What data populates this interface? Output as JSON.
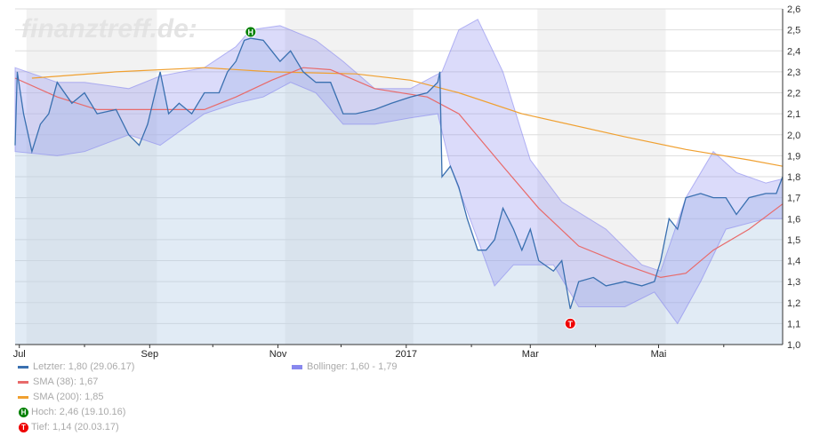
{
  "watermark": "finanztreff.de:",
  "colors": {
    "price": "#3a70b0",
    "sma38": "#e86a6a",
    "sma200": "#f0a030",
    "bollinger": "#8888ee",
    "hoch": "#008000",
    "tief": "#ee0000"
  },
  "legend": [
    {
      "label": "Letzter: 1,80 (29.06.17)"
    },
    {
      "label": "SMA (38): 1,67"
    },
    {
      "label": "SMA (200): 1,85"
    },
    {
      "label": "Hoch: 2,46 (19.10.16)",
      "marker": "H"
    },
    {
      "label": "Tief: 1,14 (20.03.17)",
      "marker": "T"
    },
    {
      "label": "Bollinger: 1,60 - 1,79"
    }
  ],
  "chart_data": {
    "type": "line",
    "xlim": [
      "2016-06-29",
      "2017-06-29"
    ],
    "ylim": [
      1.0,
      2.6
    ],
    "yticks": [
      "1,0",
      "1,1",
      "1,2",
      "1,3",
      "1,4",
      "1,5",
      "1,6",
      "1,7",
      "1,8",
      "1,9",
      "2,0",
      "2,1",
      "2,2",
      "2,3",
      "2,4",
      "2,5",
      "2,6"
    ],
    "xticks": [
      {
        "date": "2016-07-01",
        "label": "Jul"
      },
      {
        "date": "2016-09-01",
        "label": "Sep"
      },
      {
        "date": "2016-11-01",
        "label": "Nov"
      },
      {
        "date": "2017-01-01",
        "label": "2017"
      },
      {
        "date": "2017-03-01",
        "label": "Mar"
      },
      {
        "date": "2017-05-01",
        "label": "Mai"
      }
    ],
    "minor_ticks": [
      "2016-08-01",
      "2016-10-01",
      "2016-12-01",
      "2017-02-01",
      "2017-04-01",
      "2017-06-01"
    ],
    "shaded_periods": [
      [
        "2016-07-01",
        "2016-09-01"
      ],
      [
        "2016-11-01",
        "2017-01-01"
      ],
      [
        "2017-03-01",
        "2017-05-01"
      ]
    ],
    "grid": true,
    "price": [
      [
        "2016-06-29",
        1.95
      ],
      [
        "2016-06-30",
        2.3
      ],
      [
        "2016-07-03",
        2.1
      ],
      [
        "2016-07-07",
        1.92
      ],
      [
        "2016-07-11",
        2.05
      ],
      [
        "2016-07-15",
        2.1
      ],
      [
        "2016-07-19",
        2.25
      ],
      [
        "2016-07-26",
        2.15
      ],
      [
        "2016-08-01",
        2.2
      ],
      [
        "2016-08-07",
        2.1
      ],
      [
        "2016-08-16",
        2.12
      ],
      [
        "2016-08-22",
        2.0
      ],
      [
        "2016-08-27",
        1.95
      ],
      [
        "2016-08-31",
        2.05
      ],
      [
        "2016-09-06",
        2.3
      ],
      [
        "2016-09-10",
        2.1
      ],
      [
        "2016-09-15",
        2.15
      ],
      [
        "2016-09-21",
        2.1
      ],
      [
        "2016-09-27",
        2.2
      ],
      [
        "2016-10-04",
        2.2
      ],
      [
        "2016-10-08",
        2.3
      ],
      [
        "2016-10-12",
        2.35
      ],
      [
        "2016-10-16",
        2.45
      ],
      [
        "2016-10-19",
        2.46
      ],
      [
        "2016-10-25",
        2.45
      ],
      [
        "2016-10-29",
        2.4
      ],
      [
        "2016-11-02",
        2.35
      ],
      [
        "2016-11-07",
        2.4
      ],
      [
        "2016-11-13",
        2.3
      ],
      [
        "2016-11-19",
        2.25
      ],
      [
        "2016-11-26",
        2.25
      ],
      [
        "2016-12-02",
        2.1
      ],
      [
        "2016-12-08",
        2.1
      ],
      [
        "2016-12-17",
        2.12
      ],
      [
        "2016-12-25",
        2.15
      ],
      [
        "2017-01-03",
        2.18
      ],
      [
        "2017-01-11",
        2.2
      ],
      [
        "2017-01-16",
        2.25
      ],
      [
        "2017-01-17",
        2.3
      ],
      [
        "2017-01-18",
        1.8
      ],
      [
        "2017-01-22",
        1.85
      ],
      [
        "2017-01-26",
        1.75
      ],
      [
        "2017-01-30",
        1.6
      ],
      [
        "2017-02-04",
        1.45
      ],
      [
        "2017-02-08",
        1.45
      ],
      [
        "2017-02-12",
        1.5
      ],
      [
        "2017-02-16",
        1.65
      ],
      [
        "2017-02-21",
        1.55
      ],
      [
        "2017-02-25",
        1.45
      ],
      [
        "2017-03-01",
        1.55
      ],
      [
        "2017-03-05",
        1.4
      ],
      [
        "2017-03-12",
        1.35
      ],
      [
        "2017-03-16",
        1.4
      ],
      [
        "2017-03-20",
        1.17
      ],
      [
        "2017-03-24",
        1.3
      ],
      [
        "2017-03-31",
        1.32
      ],
      [
        "2017-04-06",
        1.28
      ],
      [
        "2017-04-15",
        1.3
      ],
      [
        "2017-04-23",
        1.28
      ],
      [
        "2017-04-29",
        1.3
      ],
      [
        "2017-05-02",
        1.4
      ],
      [
        "2017-05-06",
        1.6
      ],
      [
        "2017-05-10",
        1.55
      ],
      [
        "2017-05-14",
        1.7
      ],
      [
        "2017-05-21",
        1.72
      ],
      [
        "2017-05-27",
        1.7
      ],
      [
        "2017-06-02",
        1.7
      ],
      [
        "2017-06-07",
        1.62
      ],
      [
        "2017-06-13",
        1.7
      ],
      [
        "2017-06-21",
        1.72
      ],
      [
        "2017-06-26",
        1.72
      ],
      [
        "2017-06-29",
        1.8
      ]
    ],
    "bollinger_upper": [
      [
        "2016-06-29",
        2.32
      ],
      [
        "2016-07-19",
        2.25
      ],
      [
        "2016-08-01",
        2.25
      ],
      [
        "2016-08-22",
        2.22
      ],
      [
        "2016-09-06",
        2.28
      ],
      [
        "2016-09-27",
        2.32
      ],
      [
        "2016-10-12",
        2.42
      ],
      [
        "2016-10-19",
        2.5
      ],
      [
        "2016-11-02",
        2.52
      ],
      [
        "2016-11-19",
        2.45
      ],
      [
        "2016-12-02",
        2.35
      ],
      [
        "2016-12-17",
        2.22
      ],
      [
        "2017-01-03",
        2.22
      ],
      [
        "2017-01-18",
        2.3
      ],
      [
        "2017-01-26",
        2.5
      ],
      [
        "2017-02-04",
        2.55
      ],
      [
        "2017-02-16",
        2.3
      ],
      [
        "2017-03-01",
        1.88
      ],
      [
        "2017-03-16",
        1.68
      ],
      [
        "2017-04-06",
        1.55
      ],
      [
        "2017-04-23",
        1.38
      ],
      [
        "2017-05-02",
        1.35
      ],
      [
        "2017-05-14",
        1.7
      ],
      [
        "2017-05-27",
        1.92
      ],
      [
        "2017-06-07",
        1.82
      ],
      [
        "2017-06-21",
        1.77
      ],
      [
        "2017-06-29",
        1.79
      ]
    ],
    "bollinger_lower": [
      [
        "2016-06-29",
        1.92
      ],
      [
        "2016-07-19",
        1.9
      ],
      [
        "2016-08-01",
        1.92
      ],
      [
        "2016-08-22",
        2.0
      ],
      [
        "2016-09-06",
        1.95
      ],
      [
        "2016-09-27",
        2.1
      ],
      [
        "2016-10-12",
        2.15
      ],
      [
        "2016-10-25",
        2.18
      ],
      [
        "2016-11-07",
        2.25
      ],
      [
        "2016-11-19",
        2.2
      ],
      [
        "2016-12-02",
        2.05
      ],
      [
        "2016-12-17",
        2.05
      ],
      [
        "2017-01-03",
        2.08
      ],
      [
        "2017-01-16",
        2.1
      ],
      [
        "2017-01-22",
        1.85
      ],
      [
        "2017-02-04",
        1.5
      ],
      [
        "2017-02-12",
        1.28
      ],
      [
        "2017-02-21",
        1.38
      ],
      [
        "2017-03-12",
        1.38
      ],
      [
        "2017-03-24",
        1.18
      ],
      [
        "2017-04-15",
        1.18
      ],
      [
        "2017-04-29",
        1.25
      ],
      [
        "2017-05-10",
        1.1
      ],
      [
        "2017-05-21",
        1.3
      ],
      [
        "2017-06-02",
        1.55
      ],
      [
        "2017-06-21",
        1.6
      ],
      [
        "2017-06-29",
        1.6
      ]
    ],
    "sma38": [
      [
        "2016-06-29",
        2.27
      ],
      [
        "2016-07-19",
        2.18
      ],
      [
        "2016-08-07",
        2.12
      ],
      [
        "2016-09-06",
        2.12
      ],
      [
        "2016-09-27",
        2.12
      ],
      [
        "2016-10-12",
        2.18
      ],
      [
        "2016-10-29",
        2.26
      ],
      [
        "2016-11-13",
        2.32
      ],
      [
        "2016-11-26",
        2.31
      ],
      [
        "2016-12-17",
        2.22
      ],
      [
        "2017-01-11",
        2.18
      ],
      [
        "2017-01-26",
        2.1
      ],
      [
        "2017-02-16",
        1.85
      ],
      [
        "2017-03-05",
        1.65
      ],
      [
        "2017-03-24",
        1.47
      ],
      [
        "2017-04-15",
        1.38
      ],
      [
        "2017-05-02",
        1.32
      ],
      [
        "2017-05-14",
        1.34
      ],
      [
        "2017-05-27",
        1.45
      ],
      [
        "2017-06-13",
        1.55
      ],
      [
        "2017-06-29",
        1.67
      ]
    ],
    "sma200": [
      [
        "2016-07-07",
        2.27
      ],
      [
        "2016-08-16",
        2.3
      ],
      [
        "2016-09-27",
        2.32
      ],
      [
        "2016-10-29",
        2.3
      ],
      [
        "2016-12-08",
        2.29
      ],
      [
        "2017-01-03",
        2.26
      ],
      [
        "2017-01-26",
        2.2
      ],
      [
        "2017-02-25",
        2.1
      ],
      [
        "2017-04-15",
        1.99
      ],
      [
        "2017-05-14",
        1.93
      ],
      [
        "2017-06-13",
        1.88
      ],
      [
        "2017-06-29",
        1.85
      ]
    ],
    "hoch": [
      "2016-10-19",
      2.46
    ],
    "tief": [
      "2017-03-20",
      1.14
    ]
  }
}
